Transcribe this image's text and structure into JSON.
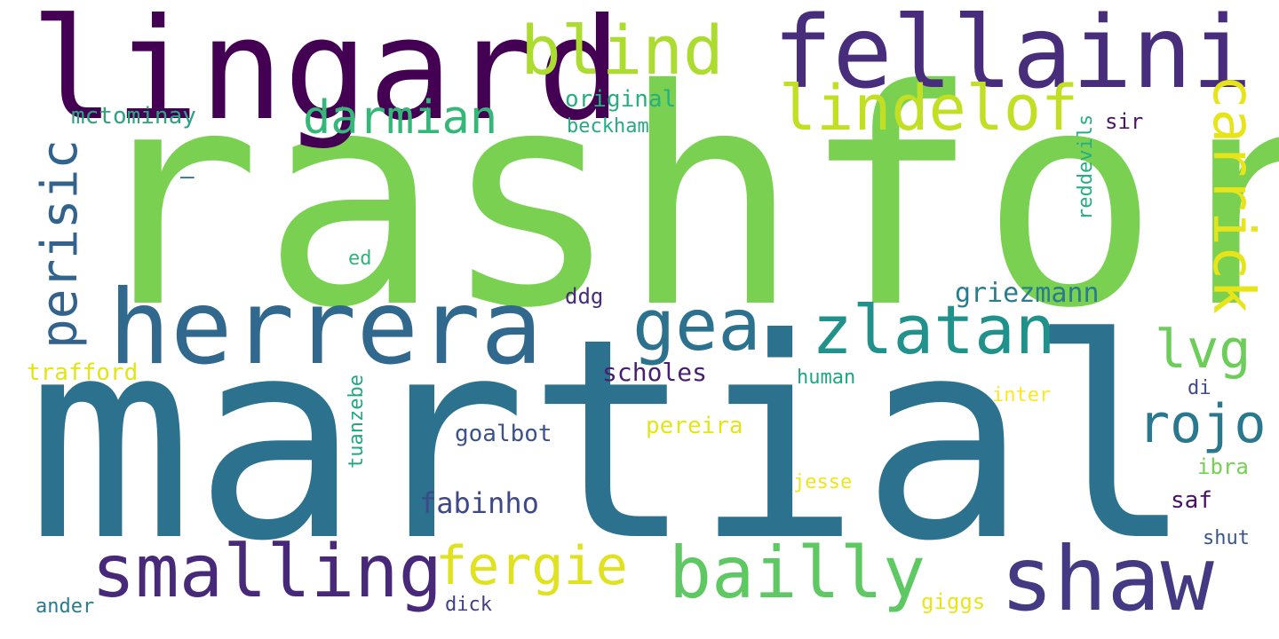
{
  "words": [
    {
      "text": "rashford",
      "color": "#7ad151"
    },
    {
      "text": "martial",
      "color": "#2c728e"
    },
    {
      "text": "lingard",
      "color": "#440154"
    },
    {
      "text": "fellaini",
      "color": "#472d7b"
    },
    {
      "text": "herrera",
      "color": "#31688e"
    },
    {
      "text": "shaw",
      "color": "#443983"
    },
    {
      "text": "smalling",
      "color": "#482878"
    },
    {
      "text": "bailly",
      "color": "#5ec962"
    },
    {
      "text": "fergie",
      "color": "#e0e11f"
    },
    {
      "text": "blind",
      "color": "#addc30"
    },
    {
      "text": "lindelof",
      "color": "#c2df23"
    },
    {
      "text": "gea",
      "color": "#2c728e"
    },
    {
      "text": "zlatan",
      "color": "#21918c"
    },
    {
      "text": "darmian",
      "color": "#35b779"
    },
    {
      "text": "carrick",
      "color": "#e7e419"
    },
    {
      "text": "perisic",
      "color": "#33638d"
    },
    {
      "text": "rojo",
      "color": "#2a788e"
    },
    {
      "text": "lvg",
      "color": "#6ccd5a"
    },
    {
      "text": "griezmann",
      "color": "#287c8e"
    },
    {
      "text": "scholes",
      "color": "#481f70"
    },
    {
      "text": "fabinho",
      "color": "#3e4989"
    },
    {
      "text": "goalbot",
      "color": "#3b528b"
    },
    {
      "text": "pereira",
      "color": "#e5e419"
    },
    {
      "text": "mctominay",
      "color": "#2ea37f"
    },
    {
      "text": "original",
      "color": "#29af7f"
    },
    {
      "text": "beckham",
      "color": "#25ab82"
    },
    {
      "text": "trafford",
      "color": "#e2e418"
    },
    {
      "text": "human",
      "color": "#20a486"
    },
    {
      "text": "inter",
      "color": "#fde725"
    },
    {
      "text": "jesse",
      "color": "#efe51c"
    },
    {
      "text": "giggs",
      "color": "#e9e51a"
    },
    {
      "text": "ibra",
      "color": "#75d054"
    },
    {
      "text": "saf",
      "color": "#471164"
    },
    {
      "text": "shut",
      "color": "#39568c"
    },
    {
      "text": "di",
      "color": "#3e4a89"
    },
    {
      "text": "sir",
      "color": "#481769"
    },
    {
      "text": "ddg",
      "color": "#472c7a"
    },
    {
      "text": "ed",
      "color": "#2fb47c"
    },
    {
      "text": "dick",
      "color": "#424086"
    },
    {
      "text": "ander",
      "color": "#297b8e"
    },
    {
      "text": "tuanzebe",
      "color": "#22a785"
    },
    {
      "text": "reddevils",
      "color": "#26ad81"
    },
    {
      "text": "—",
      "color": "#2c728e"
    }
  ]
}
